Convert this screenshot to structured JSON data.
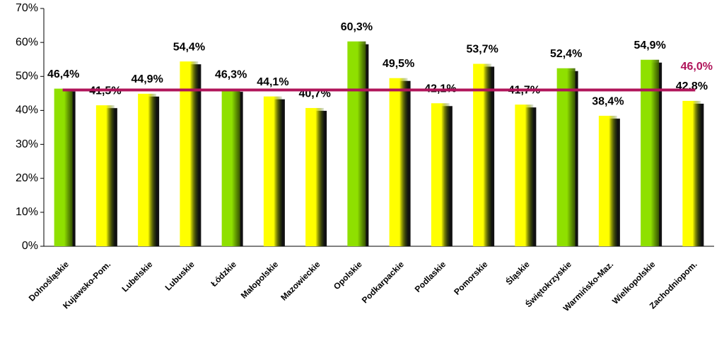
{
  "chart_data": {
    "type": "bar",
    "categories": [
      "Dolnośląskie",
      "Kujawsko-Pom.",
      "Lubelskie",
      "Lubuskie",
      "Łódzkie",
      "Małopolskie",
      "Mazowieckie",
      "Opolskie",
      "Podkarpackie",
      "Podlaskie",
      "Pomorskie",
      "Śląskie",
      "Świętokrzyskie",
      "Warmińsko-Maz.",
      "Wielkopolskie",
      "Zachodniopom."
    ],
    "values": [
      46.4,
      41.5,
      44.9,
      54.4,
      46.3,
      44.1,
      40.7,
      60.3,
      49.5,
      42.1,
      53.7,
      41.7,
      52.4,
      38.4,
      54.9,
      42.8
    ],
    "value_labels": [
      "46,4%",
      "41,5%",
      "44,9%",
      "54,4%",
      "46,3%",
      "44,1%",
      "40,7%",
      "60,3%",
      "49,5%",
      "42,1%",
      "53,7%",
      "41,7%",
      "52,4%",
      "38,4%",
      "54,9%",
      "42,8%"
    ],
    "colors": [
      "#8fe000",
      "#ffff00",
      "#ffff00",
      "#ffff00",
      "#8fe000",
      "#ffff00",
      "#ffff00",
      "#8fe000",
      "#ffff00",
      "#ffff00",
      "#ffff00",
      "#ffff00",
      "#8fe000",
      "#ffff00",
      "#8fe000",
      "#ffff00"
    ],
    "ylim": [
      0,
      70
    ],
    "yticks": [
      {
        "value": 0,
        "label": "0%"
      },
      {
        "value": 10,
        "label": "10%"
      },
      {
        "value": 20,
        "label": "20%"
      },
      {
        "value": 30,
        "label": "30%"
      },
      {
        "value": 40,
        "label": "40%"
      },
      {
        "value": 50,
        "label": "50%"
      },
      {
        "value": 60,
        "label": "60%"
      },
      {
        "value": 70,
        "label": "70%"
      }
    ],
    "reference_line": {
      "value": 46.0,
      "label": "46,0%",
      "color": "#b0145a"
    }
  }
}
